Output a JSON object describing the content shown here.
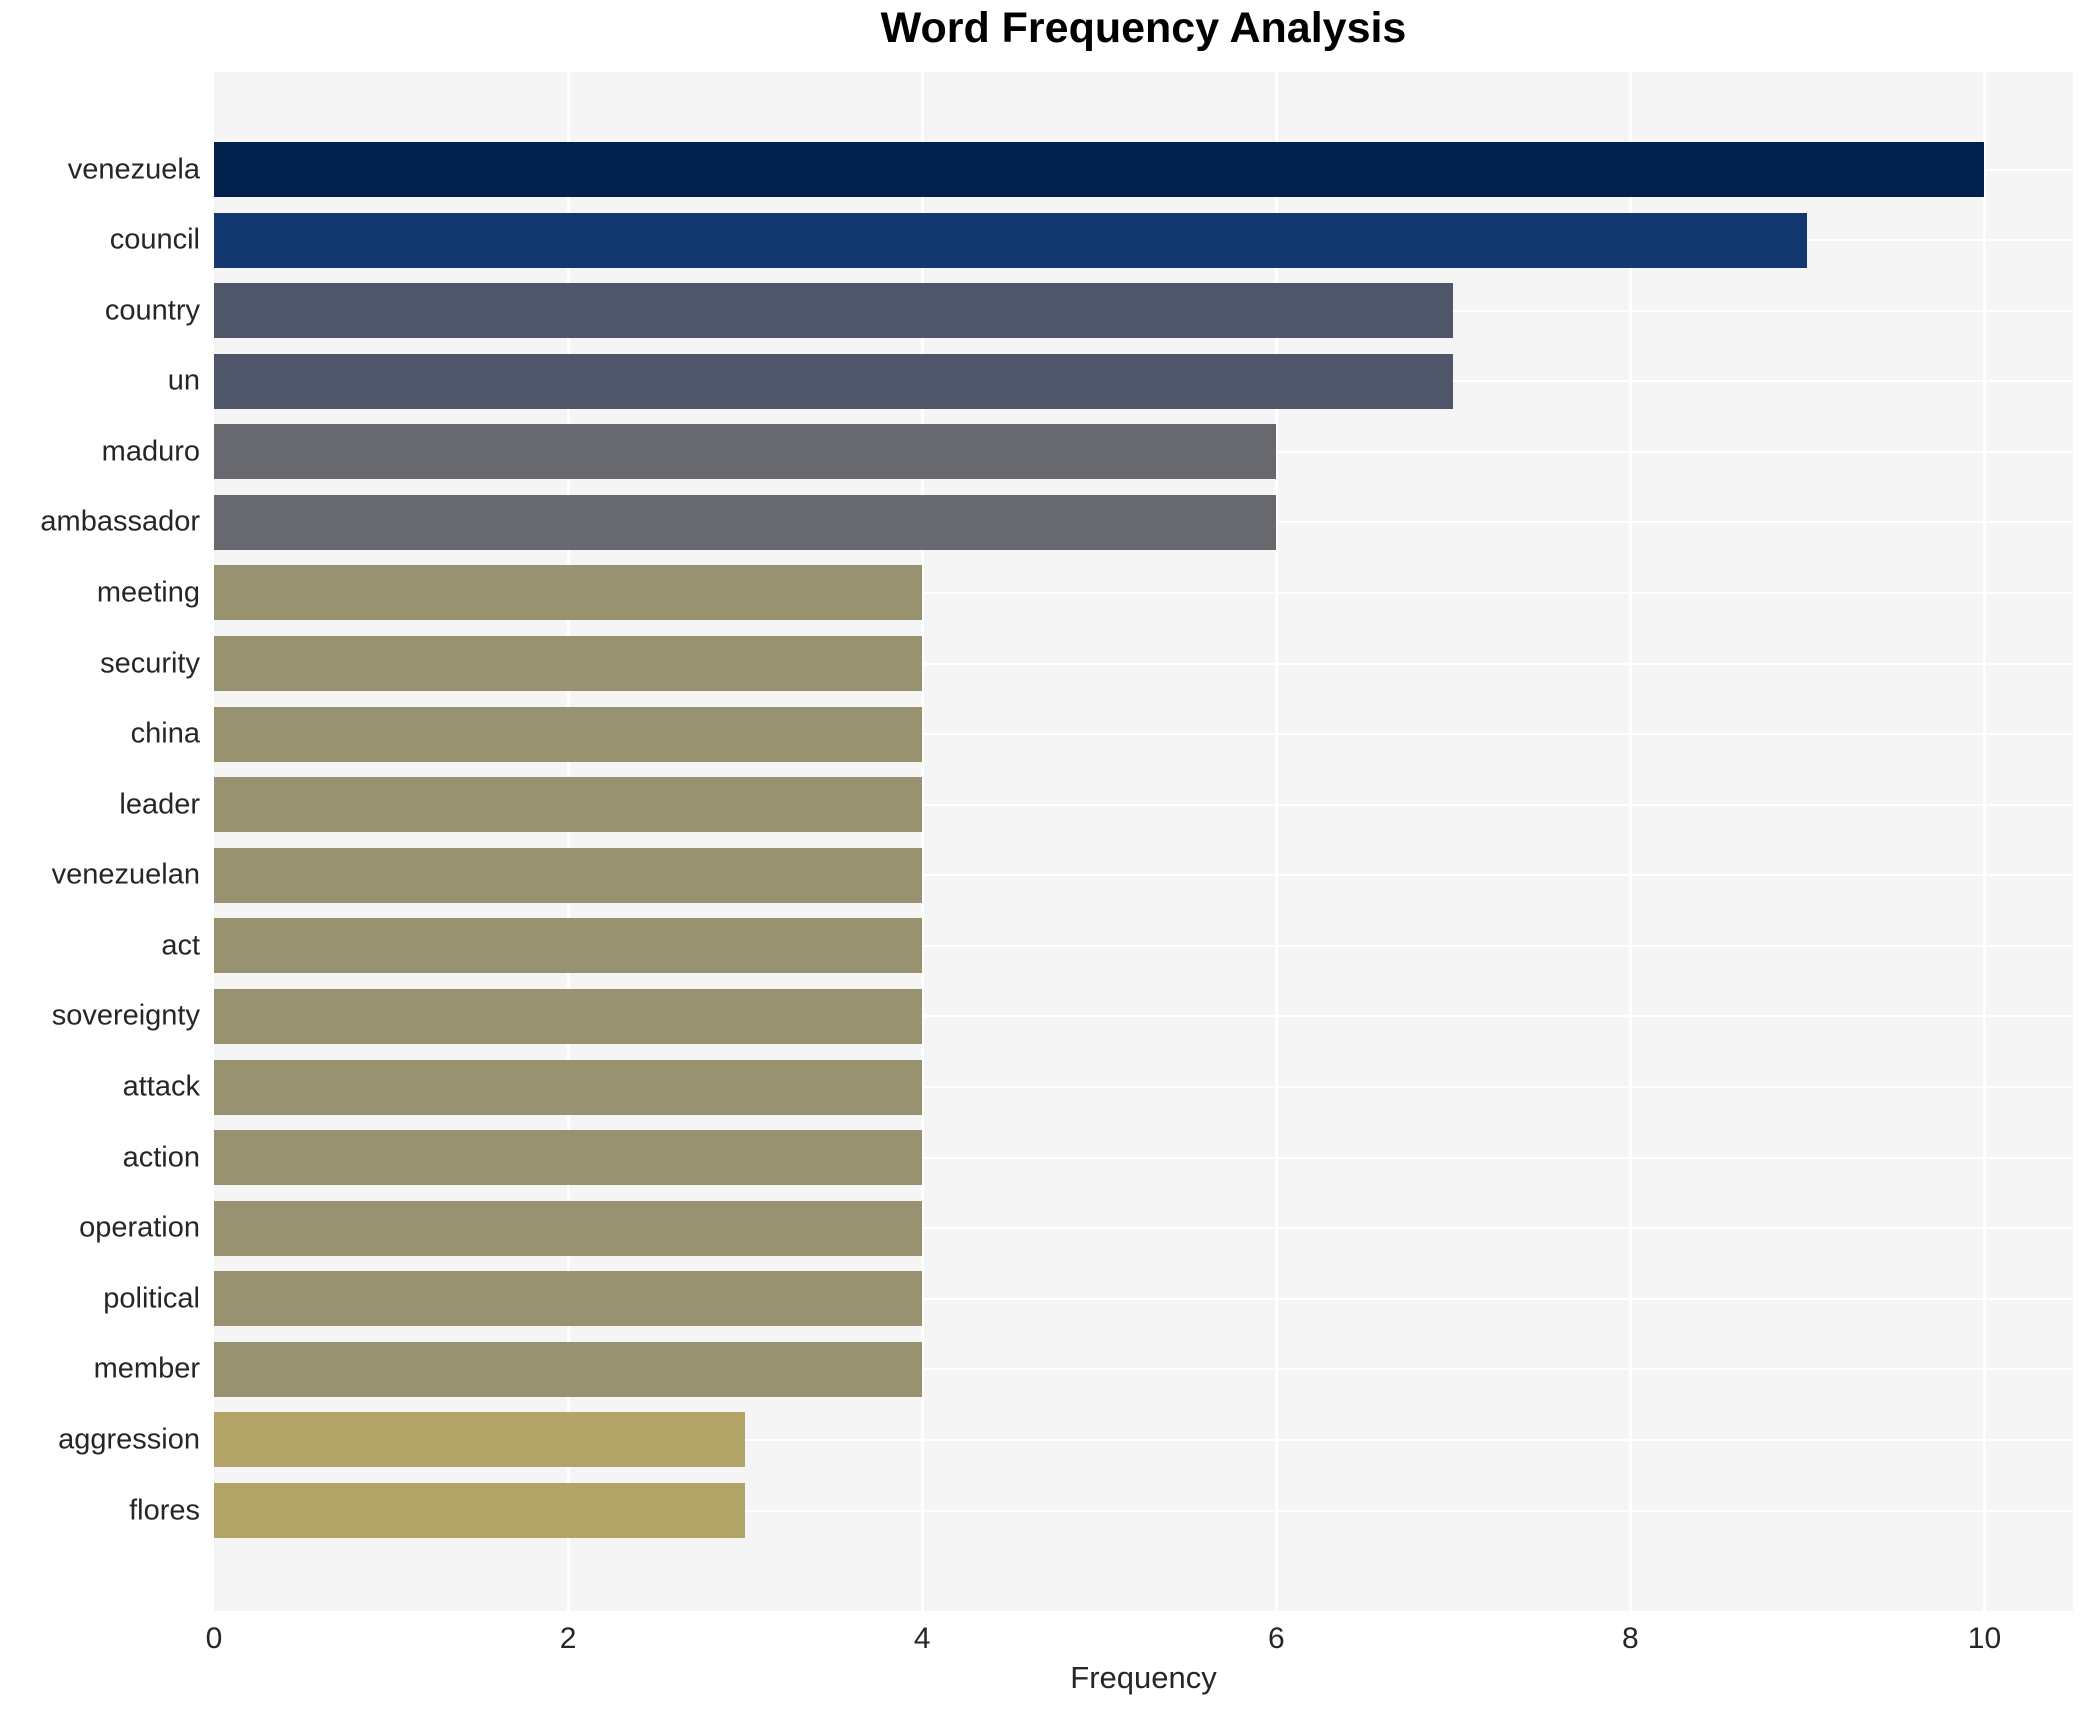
{
  "chart_data": {
    "type": "bar",
    "orientation": "horizontal",
    "title": "Word Frequency Analysis",
    "xlabel": "Frequency",
    "ylabel": "",
    "categories": [
      "venezuela",
      "council",
      "country",
      "un",
      "maduro",
      "ambassador",
      "meeting",
      "security",
      "china",
      "leader",
      "venezuelan",
      "act",
      "sovereignty",
      "attack",
      "action",
      "operation",
      "political",
      "member",
      "aggression",
      "flores"
    ],
    "values": [
      10,
      9,
      7,
      7,
      6,
      6,
      4,
      4,
      4,
      4,
      4,
      4,
      4,
      4,
      4,
      4,
      4,
      4,
      3,
      3
    ],
    "bar_colors": [
      "#00224d",
      "#12386f",
      "#4f5669",
      "#4f5669",
      "#67696f",
      "#67696f",
      "#989271",
      "#989271",
      "#989271",
      "#989271",
      "#989271",
      "#989271",
      "#989271",
      "#989271",
      "#989271",
      "#989271",
      "#989271",
      "#989271",
      "#b2a466",
      "#b2a466"
    ],
    "xlim": [
      0,
      10.5
    ],
    "x_ticks": [
      0,
      2,
      4,
      6,
      8,
      10
    ],
    "grid": true,
    "legend": "none",
    "plot_background": "#f5f5f6",
    "grid_color": "#ffffff",
    "page_background": "#ffffff",
    "title_color": "#000000",
    "tick_label_color": "#262626"
  }
}
